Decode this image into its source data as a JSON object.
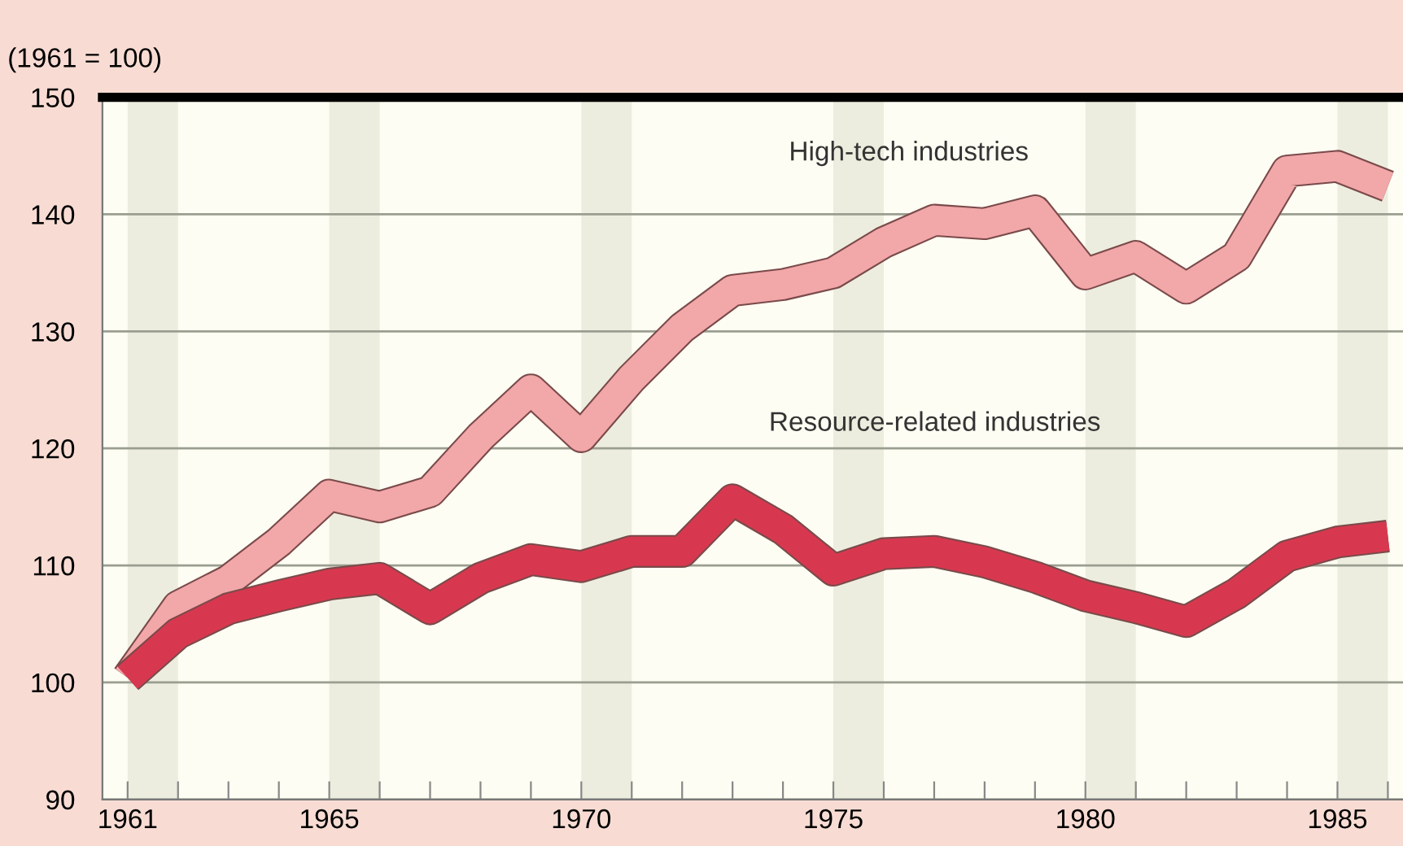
{
  "chart_data": {
    "type": "line",
    "ylabel": "(1961 = 100)",
    "x": [
      1961,
      1962,
      1963,
      1964,
      1965,
      1966,
      1967,
      1968,
      1969,
      1970,
      1971,
      1972,
      1973,
      1974,
      1975,
      1976,
      1977,
      1978,
      1979,
      1980,
      1981,
      1982,
      1983,
      1984,
      1985,
      1986
    ],
    "series": [
      {
        "name": "High-tech industries",
        "color": "#f2a7a8",
        "values": [
          100.4,
          106.5,
          108.7,
          112,
          116,
          115,
          116.3,
          121,
          125,
          121,
          126,
          130.3,
          133.5,
          134,
          135,
          137.6,
          139.5,
          139.2,
          140.3,
          134.9,
          136.4,
          133.7,
          136.4,
          143.7,
          144.1,
          142.4
        ]
      },
      {
        "name": "Resource-related industries",
        "color": "#d8384f",
        "values": [
          100.4,
          104.2,
          106.3,
          107.4,
          108.4,
          108.9,
          106.3,
          108.9,
          110.5,
          109.9,
          111.2,
          111.2,
          115.6,
          113.1,
          109.6,
          111,
          111.2,
          110.3,
          109,
          107.4,
          106.4,
          105.2,
          107.6,
          110.8,
          112,
          112.5
        ]
      }
    ],
    "xlim": [
      1960.5,
      1986.3
    ],
    "xticks": [
      1961,
      {
        "value": 1962,
        "label": null
      },
      {
        "value": 1963,
        "label": null
      },
      {
        "value": 1964,
        "label": null
      },
      1965,
      {
        "value": 1966,
        "label": null
      },
      {
        "value": 1967,
        "label": null
      },
      {
        "value": 1968,
        "label": null
      },
      {
        "value": 1969,
        "label": null
      },
      1970,
      {
        "value": 1971,
        "label": null
      },
      {
        "value": 1972,
        "label": null
      },
      {
        "value": 1973,
        "label": null
      },
      {
        "value": 1974,
        "label": null
      },
      1975,
      {
        "value": 1976,
        "label": null
      },
      {
        "value": 1977,
        "label": null
      },
      {
        "value": 1978,
        "label": null
      },
      {
        "value": 1979,
        "label": null
      },
      1980,
      {
        "value": 1981,
        "label": null
      },
      {
        "value": 1982,
        "label": null
      },
      {
        "value": 1983,
        "label": null
      },
      {
        "value": 1984,
        "label": null
      },
      1985,
      {
        "value": 1986,
        "label": null
      }
    ],
    "ylim": [
      90,
      150
    ],
    "yticks": [
      90,
      100,
      110,
      120,
      130,
      140,
      150
    ],
    "grid": "y",
    "legend": false,
    "line_style": "solid",
    "marker": "none",
    "bands": [
      {
        "axis": "x",
        "from": 1961,
        "to": 1962,
        "color": "#ecedde"
      },
      {
        "axis": "x",
        "from": 1965,
        "to": 1966,
        "color": "#ecedde"
      },
      {
        "axis": "x",
        "from": 1970,
        "to": 1971,
        "color": "#ecedde"
      },
      {
        "axis": "x",
        "from": 1975,
        "to": 1976,
        "color": "#ecedde"
      },
      {
        "axis": "x",
        "from": 1980,
        "to": 1981,
        "color": "#ecedde"
      },
      {
        "axis": "x",
        "from": 1985,
        "to": 1986,
        "color": "#ecedde"
      }
    ]
  }
}
